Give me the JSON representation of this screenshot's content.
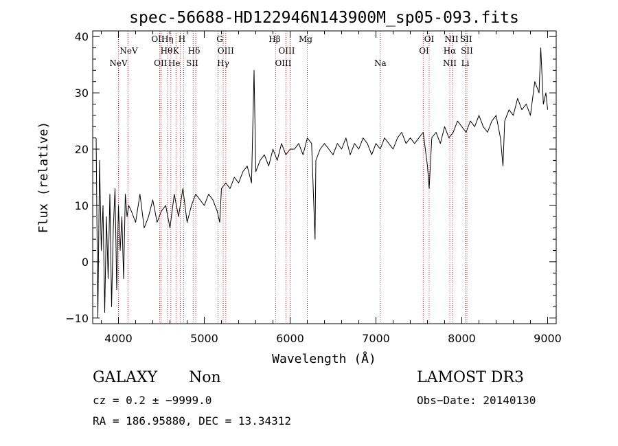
{
  "chart_data": {
    "type": "line",
    "title": "spec-56688-HD122946N143900M_sp05-093.fits",
    "xlabel": "Wavelength (Å)",
    "ylabel": "Flux (relative)",
    "xlim": [
      3700,
      9100
    ],
    "ylim": [
      -11,
      41
    ],
    "xticks": [
      4000,
      5000,
      6000,
      7000,
      8000,
      9000
    ],
    "yticks": [
      -10,
      0,
      10,
      20,
      30,
      40
    ],
    "grid": false,
    "line_color": "#000000",
    "marker_color": "#cc2222",
    "series": [
      {
        "x": [
          3740,
          3760,
          3780,
          3800,
          3820,
          3840,
          3860,
          3880,
          3900,
          3920,
          3940,
          3960,
          3980,
          4000,
          4020,
          4040,
          4060,
          4080,
          4100,
          4120,
          4150,
          4200,
          4250,
          4300,
          4350,
          4400,
          4450,
          4500,
          4550,
          4600,
          4650,
          4700,
          4750,
          4800,
          4850,
          4900,
          4950,
          5000,
          5050,
          5100,
          5150,
          5180,
          5200,
          5250,
          5300,
          5350,
          5400,
          5450,
          5500,
          5550,
          5580,
          5600,
          5650,
          5700,
          5750,
          5800,
          5850,
          5900,
          5950,
          6000,
          6050,
          6100,
          6150,
          6200,
          6250,
          6290,
          6300,
          6350,
          6400,
          6450,
          6500,
          6550,
          6600,
          6650,
          6700,
          6750,
          6800,
          6850,
          6900,
          6950,
          7000,
          7050,
          7100,
          7150,
          7200,
          7250,
          7300,
          7350,
          7400,
          7450,
          7500,
          7550,
          7600,
          7620,
          7650,
          7700,
          7750,
          7800,
          7850,
          7900,
          7950,
          8000,
          8050,
          8100,
          8150,
          8200,
          8250,
          8300,
          8350,
          8400,
          8450,
          8480,
          8500,
          8550,
          8600,
          8650,
          8700,
          8750,
          8800,
          8850,
          8900,
          8920,
          8950,
          8980,
          9000
        ],
        "y": [
          22,
          -10,
          18,
          2,
          10,
          -9,
          8,
          -3,
          12,
          -8,
          6,
          13,
          -5,
          10,
          2,
          8,
          -3,
          12,
          8,
          10,
          9,
          7,
          12,
          6,
          8,
          11,
          7,
          9,
          10,
          6,
          12,
          8,
          13,
          7,
          10,
          12,
          11,
          10,
          12,
          11,
          9,
          7,
          13,
          14,
          13,
          15,
          14,
          16,
          17,
          14,
          34,
          16,
          18,
          19,
          17,
          20,
          18,
          21,
          19,
          20,
          20,
          21,
          19,
          22,
          21,
          4,
          18,
          20,
          21,
          20,
          19,
          21,
          20,
          22,
          19,
          21,
          20,
          22,
          21,
          19,
          21,
          20,
          22,
          21,
          20,
          22,
          23,
          21,
          22,
          21,
          22,
          23,
          17,
          13,
          22,
          23,
          21,
          24,
          22,
          23,
          25,
          24,
          23,
          25,
          24,
          26,
          24,
          23,
          25,
          26,
          22,
          17,
          25,
          27,
          26,
          29,
          27,
          28,
          26,
          32,
          30,
          38,
          28,
          30,
          27
        ]
      }
    ],
    "spectral_lines": [
      {
        "label": "NeV",
        "row": 3,
        "x": 4000
      },
      {
        "label": "NeV",
        "row": 2,
        "x": 4120
      },
      {
        "label": "OII",
        "row": 1,
        "x": 4460
      },
      {
        "label": "OII",
        "row": 3,
        "x": 4490
      },
      {
        "label": "Hη",
        "row": 1,
        "x": 4570
      },
      {
        "label": "Hθ",
        "row": 2,
        "x": 4560
      },
      {
        "label": "He",
        "row": 3,
        "x": 4650
      },
      {
        "label": "K",
        "row": 2,
        "x": 4670
      },
      {
        "label": "H",
        "row": 1,
        "x": 4740
      },
      {
        "label": "Hδ",
        "row": 2,
        "x": 4880
      },
      {
        "label": "SII",
        "row": 3,
        "x": 4860
      },
      {
        "label": "G",
        "row": 1,
        "x": 5180
      },
      {
        "label": "OIII",
        "row": 2,
        "x": 5250
      },
      {
        "label": "Hγ",
        "row": 3,
        "x": 5220
      },
      {
        "label": "Hβ",
        "row": 1,
        "x": 5820
      },
      {
        "label": "OIII",
        "row": 2,
        "x": 5960
      },
      {
        "label": "OIII",
        "row": 3,
        "x": 5920
      },
      {
        "label": "Mg",
        "row": 1,
        "x": 6180
      },
      {
        "label": "Na",
        "row": 3,
        "x": 7050
      },
      {
        "label": "OI",
        "row": 1,
        "x": 7620
      },
      {
        "label": "OI",
        "row": 2,
        "x": 7560
      },
      {
        "label": "NII",
        "row": 1,
        "x": 7880
      },
      {
        "label": "Hα",
        "row": 2,
        "x": 7860
      },
      {
        "label": "NII",
        "row": 3,
        "x": 7860
      },
      {
        "label": "SII",
        "row": 1,
        "x": 8050
      },
      {
        "label": "SII",
        "row": 2,
        "x": 8060
      },
      {
        "label": "Li",
        "row": 3,
        "x": 8040
      }
    ],
    "marker_lines": [
      4000,
      4110,
      4480,
      4495,
      4570,
      4610,
      4670,
      4720,
      4760,
      4870,
      4900,
      5160,
      5220,
      5250,
      5830,
      5950,
      6000,
      6200,
      7050,
      7550,
      7620,
      7860,
      7890,
      8040,
      8060
    ]
  },
  "info": {
    "object_class": "GALAXY",
    "subclass": "Non",
    "survey": "LAMOST DR3",
    "redshift": "cz = 0.2 ± −9999.0",
    "obs_date": "Obs−Date: 20140130",
    "coordinates": "RA = 186.95880, DEC =  13.34312"
  }
}
